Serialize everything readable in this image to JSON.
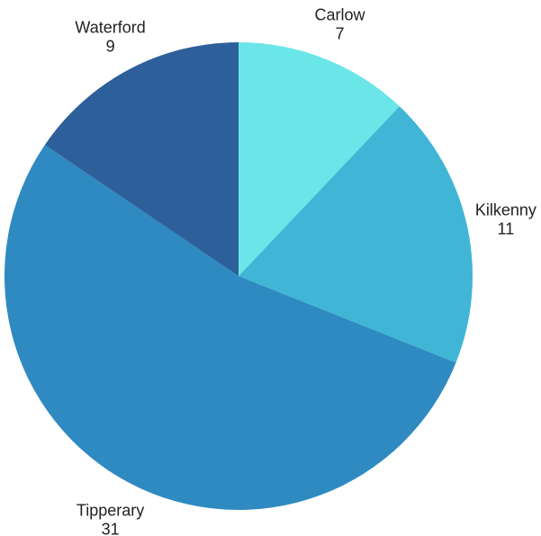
{
  "chart_data": {
    "type": "pie",
    "start_angle_deg": 0,
    "direction": "clockwise",
    "slices": [
      {
        "label": "Carlow",
        "value": 7,
        "color": "#6BE6E8"
      },
      {
        "label": "Kilkenny",
        "value": 11,
        "color": "#41B5D6"
      },
      {
        "label": "Tipperary",
        "value": 31,
        "color": "#2E8AC0"
      },
      {
        "label": "Waterford",
        "value": 9,
        "color": "#2D5F9A"
      }
    ]
  }
}
